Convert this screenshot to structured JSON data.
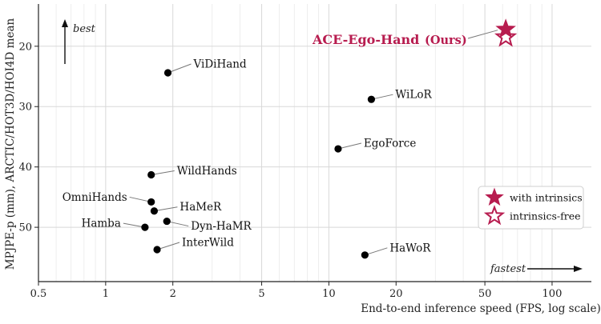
{
  "chart_data": {
    "type": "scatter",
    "xscale": "log",
    "xlabel": "End-to-end inference speed (FPS, log scale)",
    "ylabel": "MPJPE-p (mm), ARCTIC/HOT3D/HOI4D mean",
    "xlim": [
      0.5,
      150
    ],
    "ylim": [
      59,
      13
    ],
    "y_inverted": true,
    "grid": true,
    "xticks": [
      {
        "value": 0.5,
        "label": "0.5"
      },
      {
        "value": 1,
        "label": "1"
      },
      {
        "value": 2,
        "label": "2"
      },
      {
        "value": 5,
        "label": "5"
      },
      {
        "value": 10,
        "label": "10"
      },
      {
        "value": 20,
        "label": "20"
      },
      {
        "value": 50,
        "label": "50"
      },
      {
        "value": 100,
        "label": "100"
      }
    ],
    "yticks": [
      {
        "value": 20,
        "label": "20"
      },
      {
        "value": 30,
        "label": "30"
      },
      {
        "value": 40,
        "label": "40"
      },
      {
        "value": 50,
        "label": "50"
      }
    ],
    "annotations": {
      "best": "best",
      "fastest": "fastest"
    },
    "points": [
      {
        "name": "ViDiHand",
        "x": 1.9,
        "y": 24.4
      },
      {
        "name": "WiLoR",
        "x": 15.5,
        "y": 28.8
      },
      {
        "name": "EgoForce",
        "x": 11.0,
        "y": 37.0
      },
      {
        "name": "WildHands",
        "x": 1.6,
        "y": 41.3
      },
      {
        "name": "OmniHands",
        "x": 1.6,
        "y": 45.8
      },
      {
        "name": "HaMeR",
        "x": 1.65,
        "y": 47.3
      },
      {
        "name": "Dyn-HaMR",
        "x": 1.88,
        "y": 49.0
      },
      {
        "name": "Hamba",
        "x": 1.5,
        "y": 50.0
      },
      {
        "name": "InterWild",
        "x": 1.7,
        "y": 53.7
      },
      {
        "name": "HaWoR",
        "x": 14.5,
        "y": 54.6
      }
    ],
    "ours": {
      "name": "ACE-Ego-Hand",
      "suffix": "(Ours)",
      "x": 62,
      "with_intrinsics": 17.2,
      "intrinsics_free": 18.5,
      "color": "#b71c4f"
    },
    "legend": {
      "position": "right",
      "entries": [
        {
          "label": "with intrinsics",
          "marker": "filled-star"
        },
        {
          "label": "intrinsics-free",
          "marker": "hollow-star"
        }
      ]
    }
  }
}
